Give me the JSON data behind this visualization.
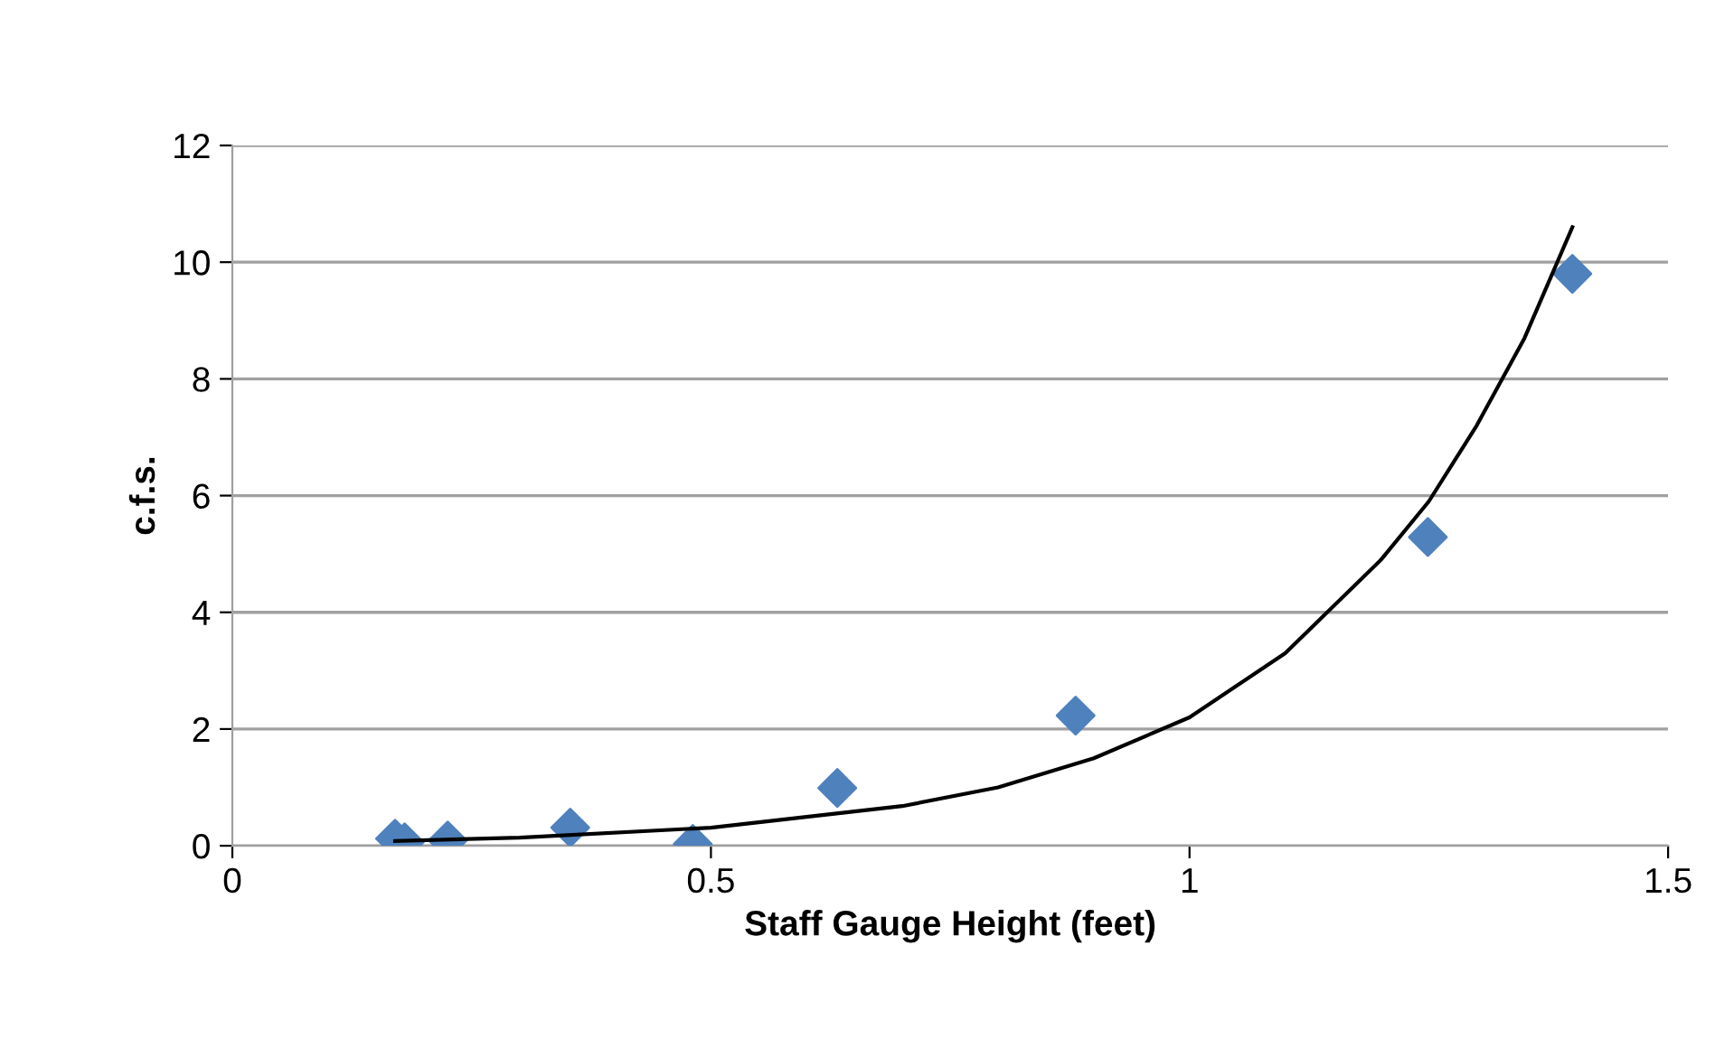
{
  "chart_data": {
    "type": "scatter",
    "xlabel": "Staff Gauge Height (feet)",
    "ylabel": "c.f.s.",
    "series": [
      {
        "color": "#4f81bd",
        "marker": "diamond",
        "x": [
          0.17,
          0.18,
          0.225,
          0.353,
          0.481,
          0.632,
          0.881,
          1.249,
          1.4
        ],
        "values": [
          0.12,
          0.06,
          0.09,
          0.31,
          0.03,
          0.99,
          2.23,
          5.29,
          9.8
        ]
      },
      {
        "type": "line",
        "color": "#000000",
        "marker": "none",
        "line_style": "solid",
        "x": [
          0.17,
          0.3,
          0.5,
          0.7,
          0.8,
          0.9,
          1.0,
          1.1,
          1.2,
          1.25,
          1.3,
          1.35,
          1.4
        ],
        "values": [
          0.08,
          0.14,
          0.31,
          0.68,
          1.0,
          1.5,
          2.2,
          3.3,
          4.9,
          5.9,
          7.2,
          8.7,
          10.6
        ]
      }
    ],
    "xlim": [
      0,
      1.5
    ],
    "xticks": [
      0,
      0.5,
      1,
      1.5
    ],
    "ylim": [
      0,
      12
    ],
    "yticks": [
      0,
      2,
      4,
      6,
      8,
      10,
      12
    ],
    "grid": "y",
    "legend": false
  }
}
